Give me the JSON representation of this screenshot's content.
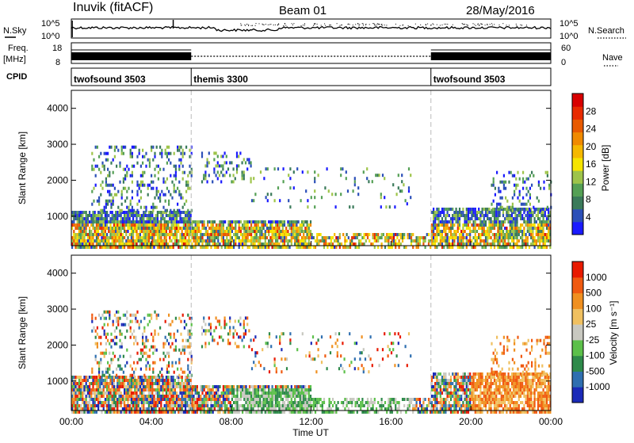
{
  "header": {
    "station": "Inuvik (fitACF)",
    "beam": "Beam 01",
    "date": "28/May/2016"
  },
  "top_panels": {
    "nsky_label": "N.Sky",
    "nsky_ticks": [
      "10^5",
      "10^0"
    ],
    "nsearch_ticks": [
      "10^5",
      "10^0"
    ],
    "nsearch_label": "N.Search",
    "freq_label": "Freq.",
    "freq_unit": "[MHz]",
    "freq_ticks": [
      "18",
      "8"
    ],
    "nave_ticks": [
      "60",
      "0"
    ],
    "nave_label": "Nave",
    "cpid_label": "CPID",
    "cpid_segments": [
      {
        "label": "twofsound 3503",
        "start": 0,
        "end": 6
      },
      {
        "label": "themis 3300",
        "start": 6,
        "end": 18
      },
      {
        "label": "twofsound 3503",
        "start": 18,
        "end": 24
      }
    ]
  },
  "x_axis": {
    "ticks": [
      "00:00",
      "04:00",
      "08:00",
      "12:00",
      "16:00",
      "20:00",
      "00:00"
    ],
    "label": "Time UT"
  },
  "chart_data": [
    {
      "type": "heatmap",
      "name": "power",
      "ylabel": "Slant Range [km]",
      "y_ticks": [
        "4000",
        "3000",
        "2000",
        "1000"
      ],
      "y_tick_values": [
        4000,
        3000,
        2000,
        1000
      ],
      "xlim_hours": [
        0,
        24
      ],
      "ylim_km": [
        180,
        4500
      ],
      "colorbar": {
        "label": "Power [dB]",
        "ticks": [
          "28",
          "24",
          "20",
          "16",
          "12",
          "8",
          "4"
        ],
        "colors": [
          "#1a1aff",
          "#2b4fb8",
          "#3a7a5a",
          "#55a055",
          "#9ec44a",
          "#f5e400",
          "#f5b800",
          "#f08a00",
          "#e85a00",
          "#e82a00",
          "#d80000"
        ]
      },
      "segment_boundaries_hours": [
        6,
        18
      ]
    },
    {
      "type": "heatmap",
      "name": "velocity",
      "ylabel": "Slant Range [km]",
      "y_ticks": [
        "4000",
        "3000",
        "2000",
        "1000"
      ],
      "y_tick_values": [
        4000,
        3000,
        2000,
        1000
      ],
      "xlim_hours": [
        0,
        24
      ],
      "ylim_km": [
        180,
        4500
      ],
      "colorbar": {
        "label": "Velocity [m s⁻¹]",
        "ticks": [
          "1000",
          "500",
          "100",
          "25",
          "-25",
          "-100",
          "-500",
          "-1000"
        ],
        "colors": [
          "#1a2ab8",
          "#2f6fb0",
          "#2e8a4a",
          "#5cc04a",
          "#c8c8c0",
          "#f0c060",
          "#f09020",
          "#f05a10",
          "#e81a00"
        ]
      },
      "segment_boundaries_hours": [
        6,
        18
      ]
    }
  ]
}
